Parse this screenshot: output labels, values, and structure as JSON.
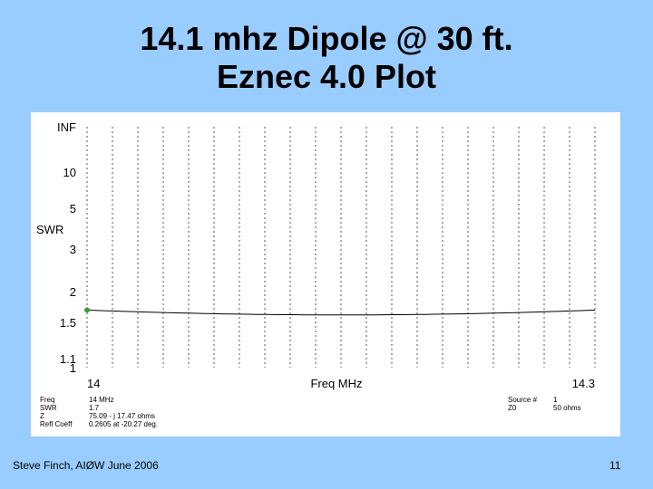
{
  "slide": {
    "title_line1": "14.1 mhz Dipole @ 30 ft.",
    "title_line2": "Eznec 4.0 Plot",
    "footer_left": "Steve Finch, AIØW June 2006",
    "footer_right": "11"
  },
  "chart_data": {
    "type": "line",
    "ylabel": "SWR",
    "xlabel": "Freq MHz",
    "x_ticks": [
      "14",
      "14.3"
    ],
    "y_ticks": [
      "INF",
      "10",
      "5",
      "3",
      "2",
      "1.5",
      "1.1",
      "1"
    ],
    "xlim": [
      14,
      14.3
    ],
    "grid": true,
    "series": [
      {
        "x": [
          14.0,
          14.1,
          14.3
        ],
        "y": [
          1.7,
          1.63,
          1.7
        ]
      }
    ],
    "marker": {
      "x": 14.0,
      "y": 1.7,
      "color": "#3a9a3a"
    },
    "line_color": "#000000",
    "readout_left": {
      "labels": [
        "Freq",
        "SWR",
        "Z",
        "Refl Coeff"
      ],
      "values": [
        "14 MHz",
        "1.7",
        "75.09 - j 17.47 ohms",
        "0.2605 at -20.27 deg."
      ]
    },
    "readout_right": {
      "labels": [
        "Source #",
        "Z0"
      ],
      "values": [
        "1",
        "50 ohms"
      ]
    }
  }
}
